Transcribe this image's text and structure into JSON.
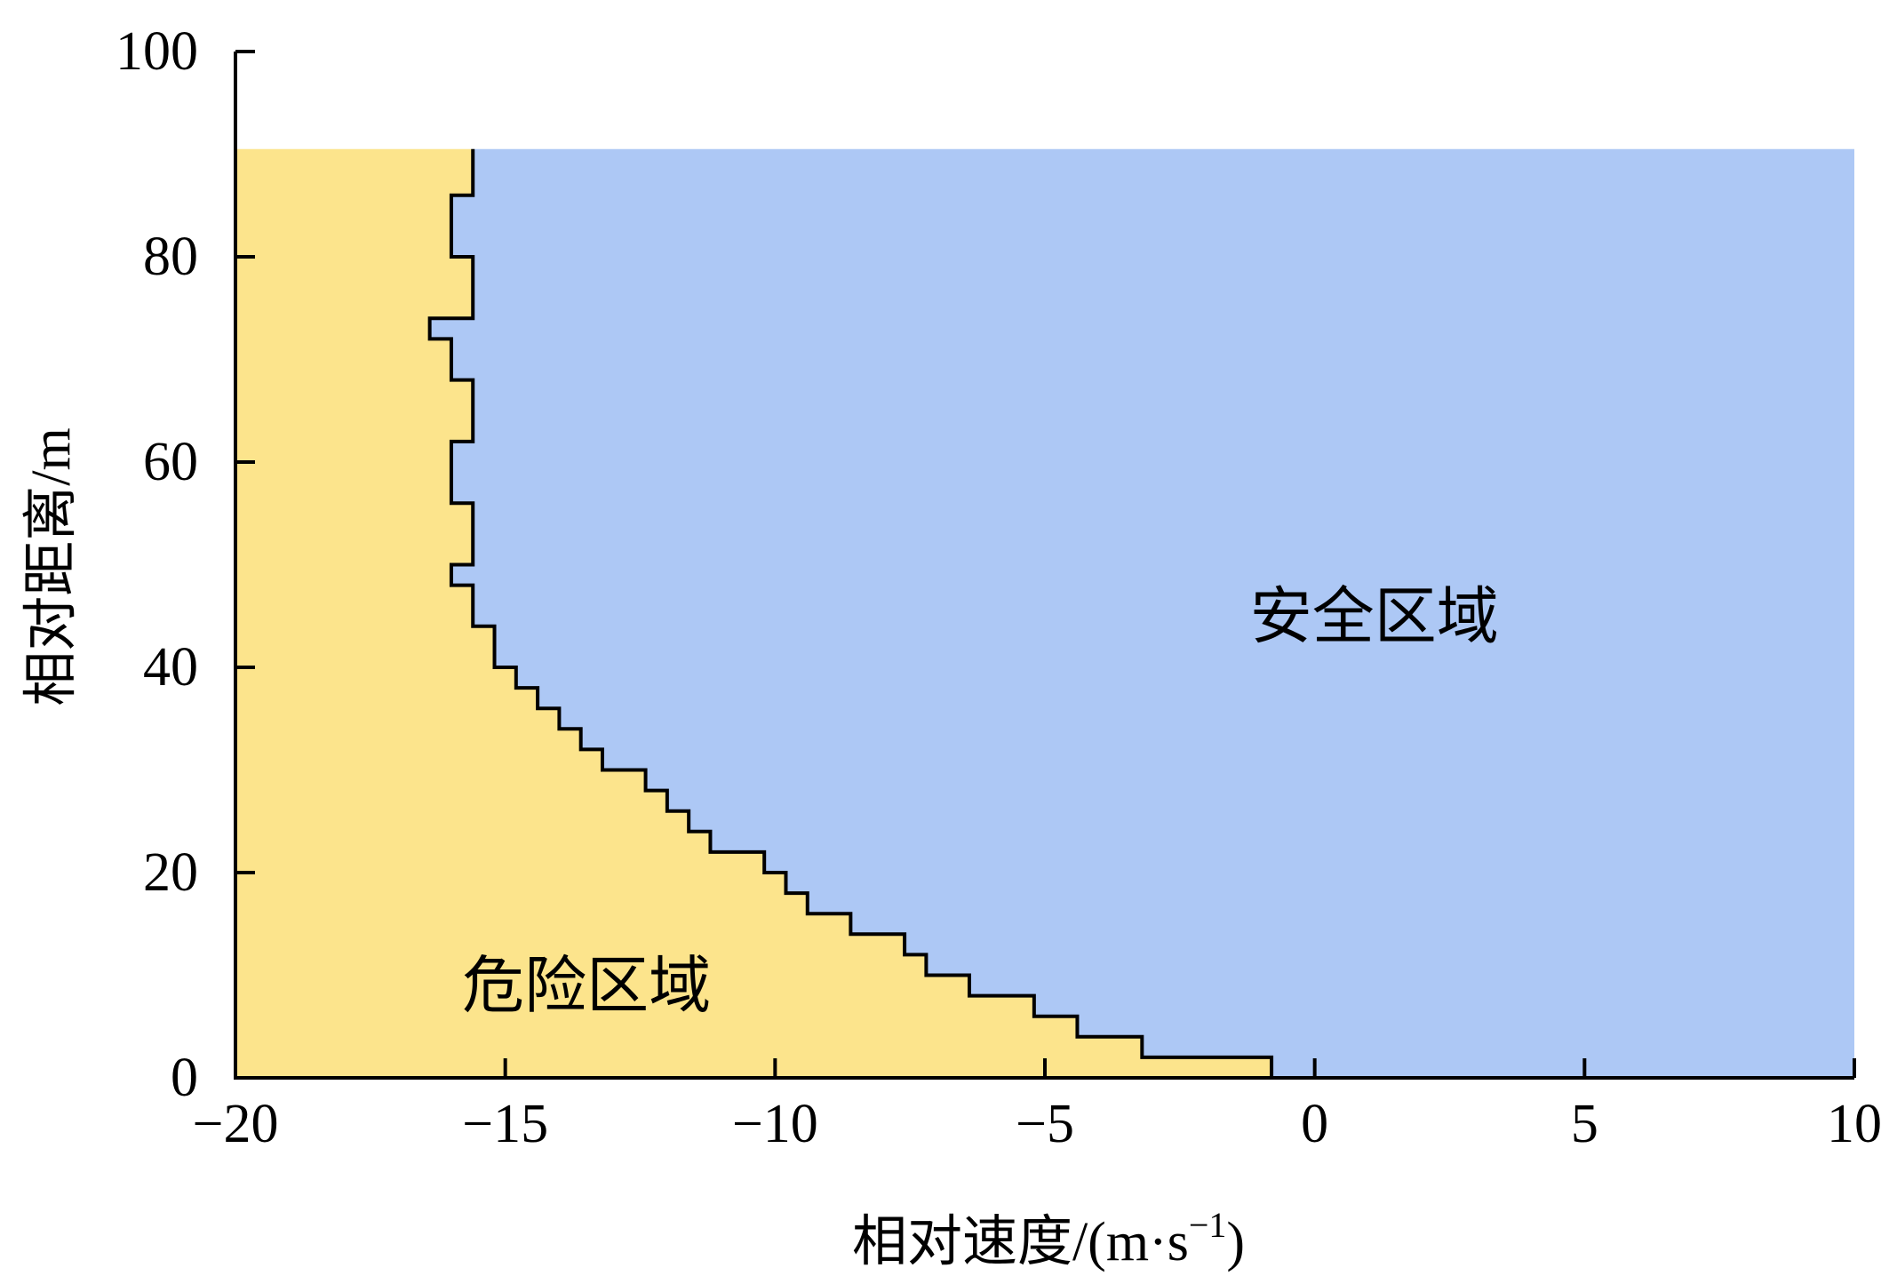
{
  "chart_data": {
    "type": "area",
    "xlabel": "相对速度/(m·s",
    "xlabel_sup": "−1",
    "xlabel_close": ")",
    "ylabel": "相对距离/m",
    "xlim": [
      -20,
      10
    ],
    "ylim": [
      0,
      100
    ],
    "xticks": [
      -20,
      -15,
      -10,
      -5,
      0,
      5,
      10
    ],
    "xtick_labels": [
      "−20",
      "−15",
      "−10",
      "−5",
      "0",
      "5",
      "10"
    ],
    "yticks": [
      0,
      20,
      40,
      60,
      80,
      100
    ],
    "ytick_labels": [
      "0",
      "20",
      "40",
      "60",
      "80",
      "100"
    ],
    "grid": false,
    "region_top": 90.5,
    "regions": [
      {
        "name": "危险区域",
        "color": "#fce48c",
        "label_pos": [
          -15.8,
          9
        ]
      },
      {
        "name": "安全区域",
        "color": "#adc8f5",
        "label_pos": [
          -1.2,
          45
        ]
      }
    ],
    "boundary_color": "#000000",
    "boundary": [
      {
        "y0": 0,
        "y1": 2,
        "x": -0.8
      },
      {
        "y0": 2,
        "y1": 4,
        "x": -3.2
      },
      {
        "y0": 4,
        "y1": 6,
        "x": -4.4
      },
      {
        "y0": 6,
        "y1": 8,
        "x": -5.2
      },
      {
        "y0": 8,
        "y1": 10,
        "x": -6.4
      },
      {
        "y0": 10,
        "y1": 12,
        "x": -7.2
      },
      {
        "y0": 12,
        "y1": 14,
        "x": -7.6
      },
      {
        "y0": 14,
        "y1": 16,
        "x": -8.6
      },
      {
        "y0": 16,
        "y1": 18,
        "x": -9.4
      },
      {
        "y0": 18,
        "y1": 20,
        "x": -9.8
      },
      {
        "y0": 20,
        "y1": 22,
        "x": -10.2
      },
      {
        "y0": 22,
        "y1": 24,
        "x": -11.2
      },
      {
        "y0": 24,
        "y1": 26,
        "x": -11.6
      },
      {
        "y0": 26,
        "y1": 28,
        "x": -12.0
      },
      {
        "y0": 28,
        "y1": 30,
        "x": -12.4
      },
      {
        "y0": 30,
        "y1": 32,
        "x": -13.2
      },
      {
        "y0": 32,
        "y1": 34,
        "x": -13.6
      },
      {
        "y0": 34,
        "y1": 36,
        "x": -14.0
      },
      {
        "y0": 36,
        "y1": 38,
        "x": -14.4
      },
      {
        "y0": 38,
        "y1": 40,
        "x": -14.8
      },
      {
        "y0": 40,
        "y1": 44,
        "x": -15.2
      },
      {
        "y0": 44,
        "y1": 48,
        "x": -15.6
      },
      {
        "y0": 48,
        "y1": 50,
        "x": -16.0
      },
      {
        "y0": 50,
        "y1": 56,
        "x": -15.6
      },
      {
        "y0": 56,
        "y1": 62,
        "x": -16.0
      },
      {
        "y0": 62,
        "y1": 68,
        "x": -15.6
      },
      {
        "y0": 68,
        "y1": 72,
        "x": -16.0
      },
      {
        "y0": 72,
        "y1": 74,
        "x": -16.4
      },
      {
        "y0": 74,
        "y1": 80,
        "x": -15.6
      },
      {
        "y0": 80,
        "y1": 86,
        "x": -16.0
      },
      {
        "y0": 86,
        "y1": 90,
        "x": -15.6
      }
    ]
  }
}
